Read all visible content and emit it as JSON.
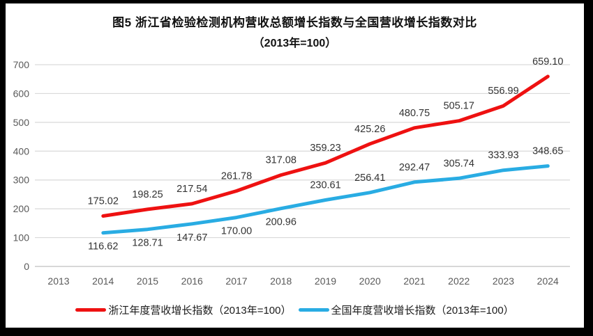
{
  "title": {
    "line1": "图5  浙江省检验检测机构营收总额增长指数与全国营收增长指数对比",
    "line2": "（2013年=100）"
  },
  "colors": {
    "zhejiang_line": "#ee1111",
    "national_line": "#29ace3",
    "gridline": "#d9d9d9",
    "axis_line": "#bfbfbf",
    "axis_text": "#595959",
    "data_label_text": "#333333",
    "frame_border": "#000000",
    "background": "#ffffff"
  },
  "chart_data": {
    "type": "line",
    "title": "图5 浙江省检验检测机构营收总额增长指数与全国营收增长指数对比（2013年=100）",
    "x_labels": [
      "2013",
      "2014",
      "2015",
      "2016",
      "2017",
      "2018",
      "2019",
      "2020",
      "2021",
      "2022",
      "2023",
      "2024"
    ],
    "yticks": [
      0,
      100,
      200,
      300,
      400,
      500,
      600,
      700
    ],
    "ylim": [
      0,
      700
    ],
    "grid": true,
    "legend_position": "bottom",
    "data_start_index": 1,
    "series": [
      {
        "name": "浙江年度营收增长指数（2013年=100）",
        "color": "#ee1111",
        "values": [
          175.02,
          198.25,
          217.54,
          261.78,
          317.08,
          359.23,
          425.26,
          480.75,
          505.17,
          556.99,
          659.1
        ],
        "labels": [
          "175.02",
          "198.25",
          "217.54",
          "261.78",
          "317.08",
          "359.23",
          "425.26",
          "480.75",
          "505.17",
          "556.99",
          "659.10"
        ],
        "label_side": [
          "above",
          "above",
          "above",
          "above",
          "above",
          "above",
          "above",
          "above",
          "above",
          "above",
          "above"
        ]
      },
      {
        "name": "全国年度营收增长指数（2013年=100）",
        "color": "#29ace3",
        "values": [
          116.62,
          128.71,
          147.67,
          170.0,
          200.96,
          230.61,
          256.41,
          292.47,
          305.74,
          333.93,
          348.65
        ],
        "labels": [
          "116.62",
          "128.71",
          "147.67",
          "170.00",
          "200.96",
          "230.61",
          "256.41",
          "292.47",
          "305.74",
          "333.93",
          "348.65"
        ],
        "label_side": [
          "below",
          "below",
          "below",
          "below",
          "below",
          "above",
          "above",
          "above",
          "above",
          "above",
          "above"
        ]
      }
    ]
  },
  "legend": {
    "items": [
      {
        "label": "浙江年度营收增长指数（2013年=100）",
        "color": "#ee1111"
      },
      {
        "label": "全国年度营收增长指数（2013年=100）",
        "color": "#29ace3"
      }
    ]
  }
}
